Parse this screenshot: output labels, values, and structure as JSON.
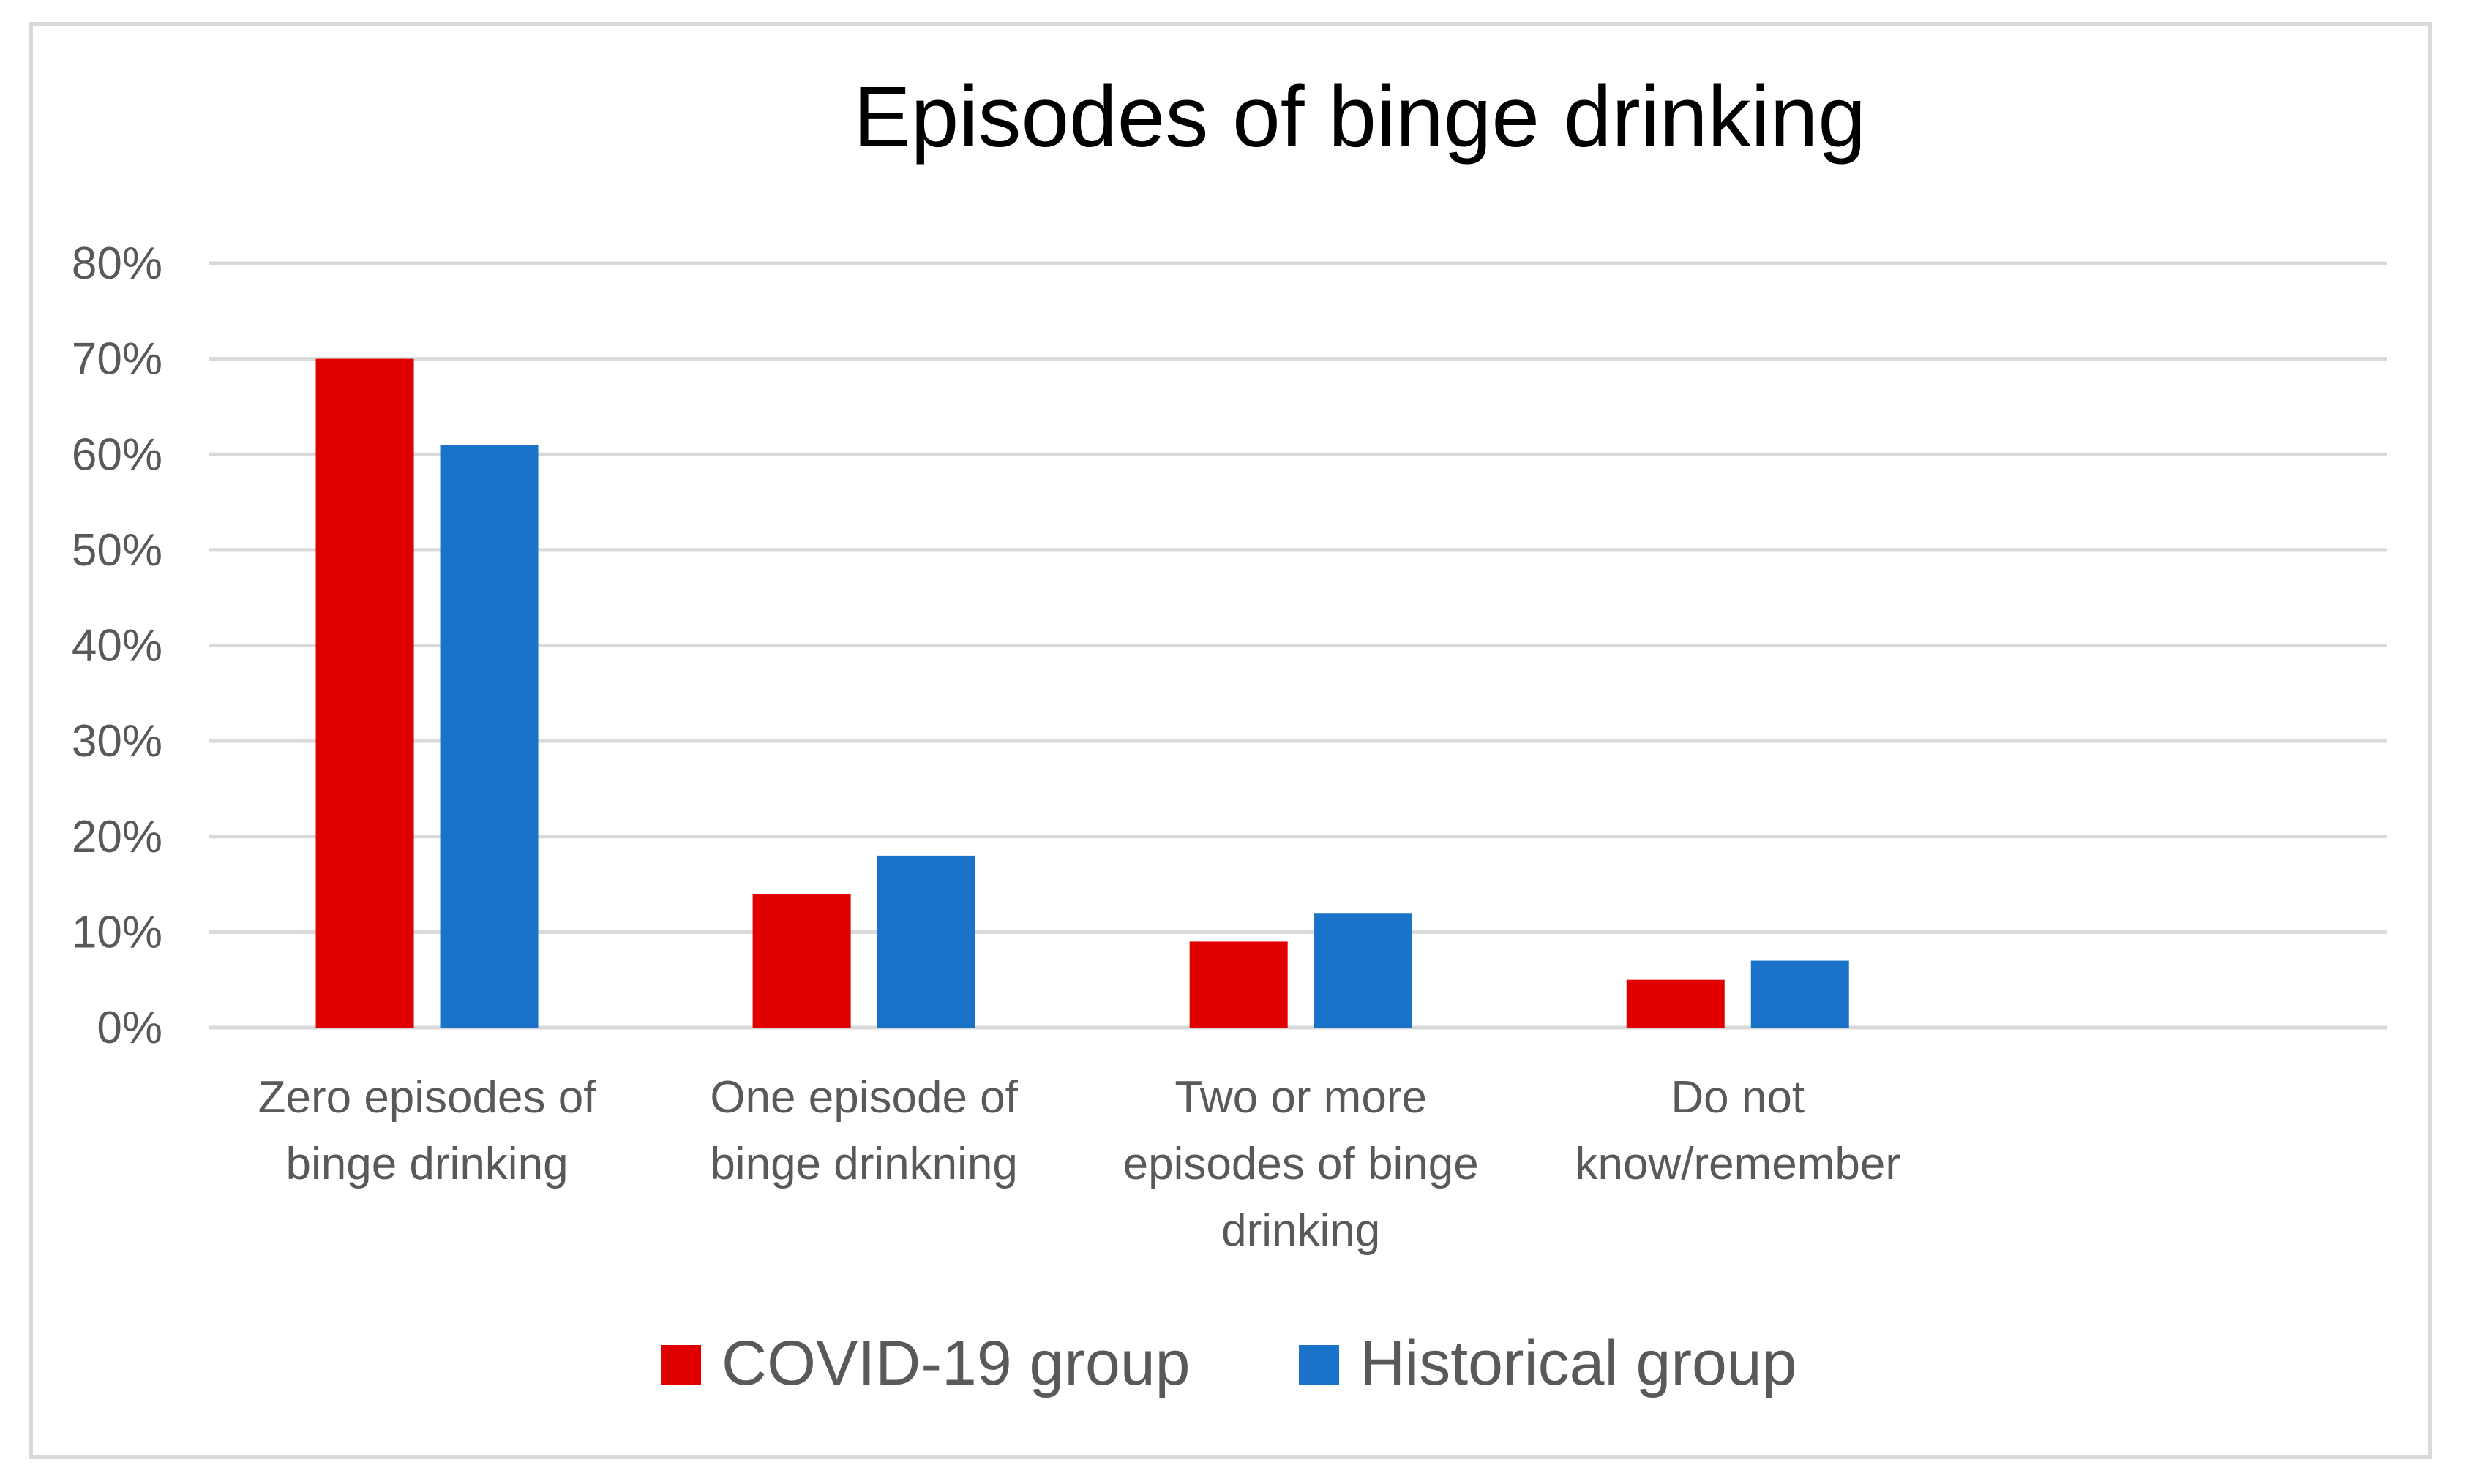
{
  "chart_data": {
    "type": "bar",
    "title": "Episodes of binge drinking",
    "categories": [
      [
        "Zero episodes of",
        "binge drinking"
      ],
      [
        "One episode of",
        "binge drinkning"
      ],
      [
        "Two or more",
        "episodes of binge",
        "drinking"
      ],
      [
        "Do not",
        "know/remember"
      ]
    ],
    "series": [
      {
        "name": "COVID-19 group",
        "color": "#e00000",
        "values": [
          70,
          14,
          9,
          5
        ]
      },
      {
        "name": "Historical group",
        "color": "#1a73c8",
        "values": [
          61,
          18,
          12,
          7
        ]
      }
    ],
    "ylim": [
      0,
      80
    ],
    "yticks": [
      0,
      10,
      20,
      30,
      40,
      50,
      60,
      70,
      80
    ],
    "ytick_labels": [
      "0%",
      "10%",
      "20%",
      "30%",
      "40%",
      "50%",
      "60%",
      "70%",
      "80%"
    ],
    "xlabel": "",
    "ylabel": "",
    "grid": true,
    "legend_position": "bottom"
  }
}
